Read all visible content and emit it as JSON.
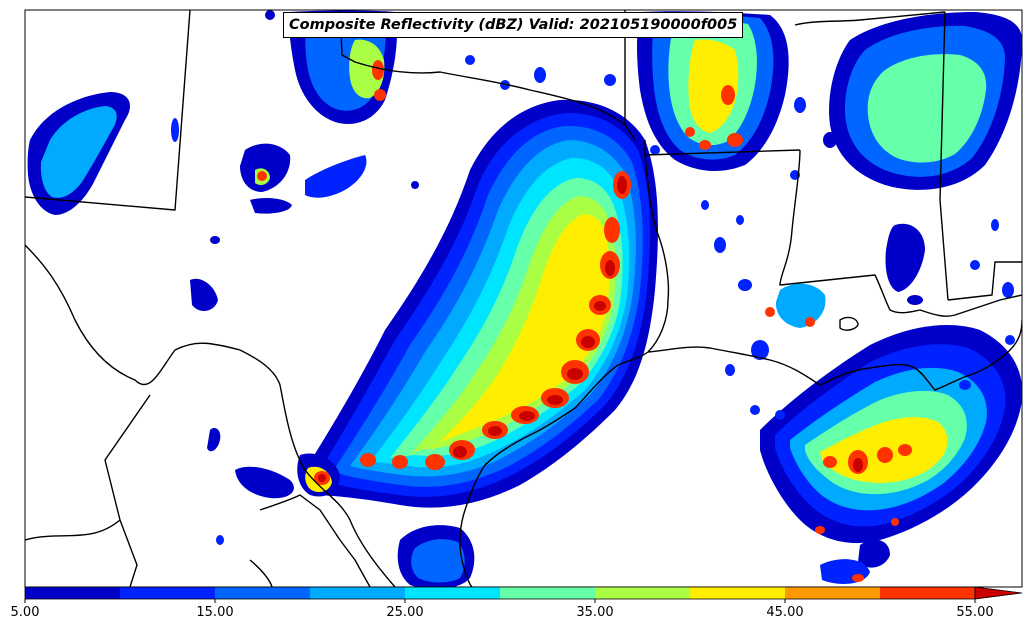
{
  "title": "Composite Reflectivity (dBZ) Valid: 202105190000f005",
  "colorbar": {
    "min": 5,
    "max": 55,
    "levels": [
      5,
      10,
      15,
      20,
      25,
      30,
      35,
      40,
      45,
      50,
      55
    ],
    "extend": "max",
    "colors": [
      "#0000c8",
      "#0022ff",
      "#0066ff",
      "#00aaff",
      "#00e5ff",
      "#66ffaa",
      "#aaff44",
      "#ffee00",
      "#ff9900",
      "#ff3300",
      "#c80000"
    ],
    "ticks": [
      {
        "value": 5,
        "label": "5.00"
      },
      {
        "value": 15,
        "label": "15.00"
      },
      {
        "value": 25,
        "label": "25.00"
      },
      {
        "value": 35,
        "label": "35.00"
      },
      {
        "value": 45,
        "label": "45.00"
      },
      {
        "value": 55,
        "label": "55.00"
      }
    ]
  },
  "palette": {
    "dbz5": "#0000c8",
    "dbz10": "#0022ff",
    "dbz15": "#0066ff",
    "dbz20": "#00aaff",
    "dbz25": "#00e5ff",
    "dbz30": "#66ffaa",
    "dbz35": "#aaff44",
    "dbz40": "#ffee00",
    "dbz45": "#ff9900",
    "dbz50": "#ff3300",
    "dbz55": "#c80000",
    "border": "#000000",
    "background": "#ffffff"
  }
}
